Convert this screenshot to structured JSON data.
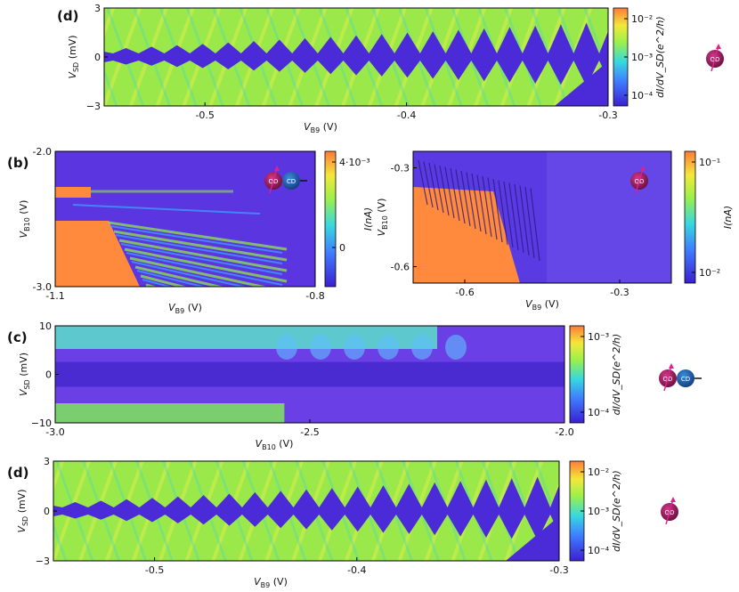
{
  "colors": {
    "low": "#4d2bd6",
    "mid": "#39c9ff",
    "green": "#8ee84a",
    "high": "#ff8a3d",
    "qd_dot": "#a21662",
    "cd_dot": "#1e5fa8",
    "spin_arrow": "#e0208c"
  },
  "chart_data": [
    {
      "id": "d_top",
      "panel_letter": "(d)",
      "type": "heatmap",
      "pattern": "diamonds",
      "xlabel_main": "V",
      "xlabel_sub": "B9",
      "xlabel_unit": "(V)",
      "ylabel_main": "V",
      "ylabel_sub": "SD",
      "ylabel_unit": "(mV)",
      "xlim": [
        -0.55,
        -0.3
      ],
      "ylim": [
        -3,
        3
      ],
      "xticks": [
        {
          "v": -0.5,
          "label": "-0.5"
        },
        {
          "v": -0.4,
          "label": "-0.4"
        },
        {
          "v": -0.3,
          "label": "-0.3"
        }
      ],
      "yticks": [
        {
          "v": -3,
          "label": "−3"
        },
        {
          "v": 0,
          "label": "0"
        },
        {
          "v": 3,
          "label": "3"
        }
      ],
      "colorbar": {
        "label": "dI/dV_SD(e^2/h)",
        "scale": "log",
        "ticks": [
          "10⁻²",
          "10⁻³",
          "10⁻⁴"
        ]
      },
      "diamond_count": 19,
      "schematic": "QD"
    },
    {
      "id": "b_left",
      "panel_letter": "(b)",
      "type": "heatmap",
      "pattern": "stripes",
      "xlabel_main": "V",
      "xlabel_sub": "B9",
      "xlabel_unit": "(V)",
      "ylabel_main": "V",
      "ylabel_sub": "B10",
      "ylabel_unit": "(V)",
      "xlim": [
        -1.1,
        -0.8
      ],
      "ylim": [
        -3.0,
        -2.0
      ],
      "xticks": [
        {
          "v": -1.1,
          "label": "-1.1"
        },
        {
          "v": -0.8,
          "label": "-0.8"
        }
      ],
      "yticks": [
        {
          "v": -2.0,
          "label": "-2.0"
        },
        {
          "v": -3.0,
          "label": "-3.0"
        }
      ],
      "colorbar": {
        "label": "I(nA)",
        "scale": "linear",
        "ticks": [
          "4·10⁻³",
          "0"
        ],
        "range": [
          -0.002,
          0.004
        ]
      },
      "schematic": "QD-CD"
    },
    {
      "id": "b_right",
      "panel_letter": "",
      "type": "heatmap",
      "pattern": "coulomb-oscillations",
      "xlabel_main": "V",
      "xlabel_sub": "B9",
      "xlabel_unit": "(V)",
      "ylabel_main": "V",
      "ylabel_sub": "B10",
      "ylabel_unit": "(V)",
      "xlim": [
        -0.7,
        -0.2
      ],
      "ylim": [
        -0.65,
        -0.25
      ],
      "xticks": [
        {
          "v": -0.6,
          "label": "-0.6"
        },
        {
          "v": -0.3,
          "label": "-0.3"
        }
      ],
      "yticks": [
        {
          "v": -0.3,
          "label": "-0.3"
        },
        {
          "v": -0.6,
          "label": "-0.6"
        }
      ],
      "colorbar": {
        "label": "I(nA)",
        "scale": "log",
        "ticks": [
          "10⁻¹",
          "10⁻²"
        ]
      },
      "schematic": "QD"
    },
    {
      "id": "c",
      "panel_letter": "(c)",
      "type": "heatmap",
      "pattern": "gap",
      "xlabel_main": "V",
      "xlabel_sub": "B10",
      "xlabel_unit": "(V)",
      "ylabel_main": "V",
      "ylabel_sub": "SD",
      "ylabel_unit": "(mV)",
      "xlim": [
        -3.0,
        -2.0
      ],
      "ylim": [
        -10,
        10
      ],
      "xticks": [
        {
          "v": -3.0,
          "label": "-3.0"
        },
        {
          "v": -2.5,
          "label": "-2.5"
        },
        {
          "v": -2.0,
          "label": "-2.0"
        }
      ],
      "yticks": [
        {
          "v": 10,
          "label": "10"
        },
        {
          "v": 0,
          "label": "0"
        },
        {
          "v": -10,
          "label": "−10"
        }
      ],
      "colorbar": {
        "label": "dI/dV_SD(e^2/h)",
        "scale": "log",
        "ticks": [
          "10⁻³",
          "10⁻⁴"
        ]
      },
      "schematic": "QD-CD"
    },
    {
      "id": "d_bottom",
      "panel_letter": "(d)",
      "type": "heatmap",
      "pattern": "diamonds",
      "xlabel_main": "V",
      "xlabel_sub": "B9",
      "xlabel_unit": "(V)",
      "ylabel_main": "V",
      "ylabel_sub": "SD",
      "ylabel_unit": "(mV)",
      "xlim": [
        -0.55,
        -0.3
      ],
      "ylim": [
        -3,
        3
      ],
      "xticks": [
        {
          "v": -0.5,
          "label": "-0.5"
        },
        {
          "v": -0.4,
          "label": "-0.4"
        },
        {
          "v": -0.3,
          "label": "-0.3"
        }
      ],
      "yticks": [
        {
          "v": 3,
          "label": "3"
        },
        {
          "v": 0,
          "label": "0"
        },
        {
          "v": -3,
          "label": "−3"
        }
      ],
      "colorbar": {
        "label": "dI/dV_SD(e^2/h)",
        "scale": "log",
        "ticks": [
          "10⁻²",
          "10⁻³",
          "10⁻⁴"
        ]
      },
      "diamond_count": 19,
      "schematic": "QD"
    }
  ],
  "schematic_labels": {
    "qd": "QD",
    "cd": "CD"
  }
}
